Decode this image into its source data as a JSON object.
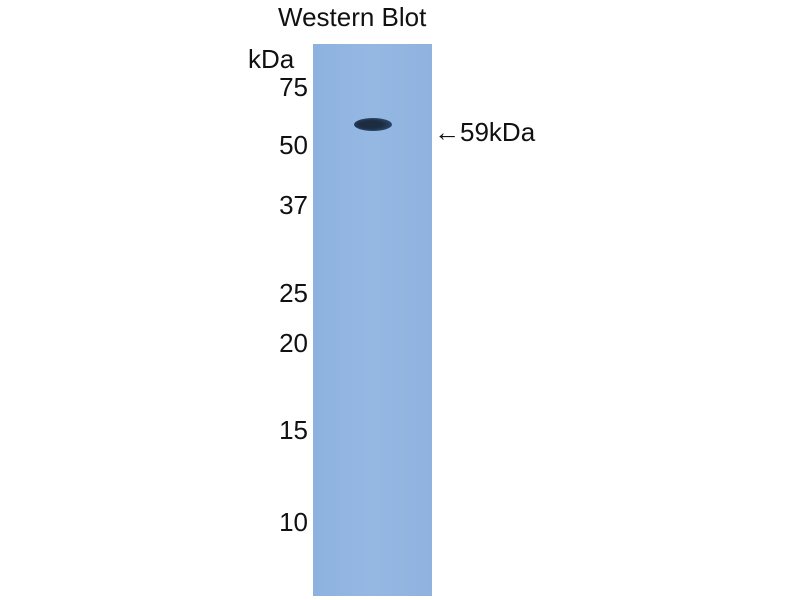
{
  "title": "Western Blot",
  "unit_label": "kDa",
  "markers": [
    "75",
    "50",
    "37",
    "25",
    "20",
    "15",
    "10"
  ],
  "band_label": "←59kDa",
  "colors": {
    "membrane": "#8fb4e0",
    "band": "#1c2d42"
  }
}
